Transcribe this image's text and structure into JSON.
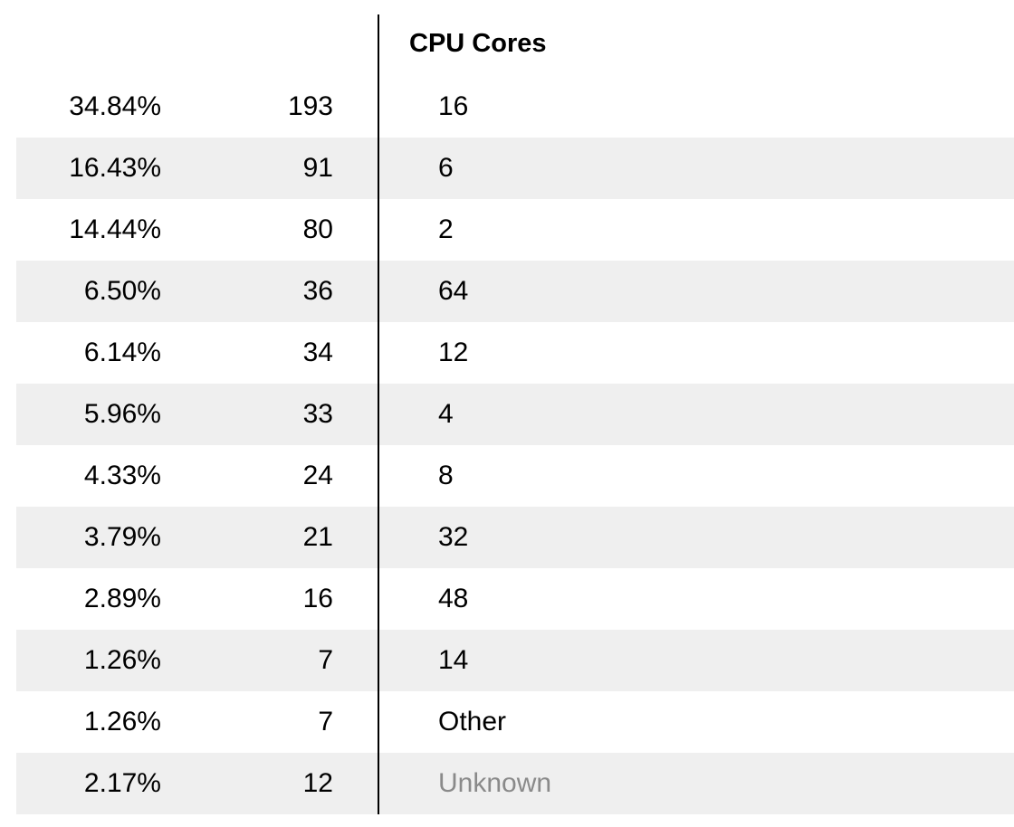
{
  "table": {
    "title": "CPU Cores",
    "rows": [
      {
        "percent": "34.84%",
        "count": "193",
        "label": "16"
      },
      {
        "percent": "16.43%",
        "count": "91",
        "label": "6"
      },
      {
        "percent": "14.44%",
        "count": "80",
        "label": "2"
      },
      {
        "percent": "6.50%",
        "count": "36",
        "label": "64"
      },
      {
        "percent": "6.14%",
        "count": "34",
        "label": "12"
      },
      {
        "percent": "5.96%",
        "count": "33",
        "label": "4"
      },
      {
        "percent": "4.33%",
        "count": "24",
        "label": "8"
      },
      {
        "percent": "3.79%",
        "count": "21",
        "label": "32"
      },
      {
        "percent": "2.89%",
        "count": "16",
        "label": "48"
      },
      {
        "percent": "1.26%",
        "count": "7",
        "label": "14"
      },
      {
        "percent": "1.26%",
        "count": "7",
        "label": "Other"
      },
      {
        "percent": "2.17%",
        "count": "12",
        "label": "Unknown"
      }
    ]
  },
  "colors": {
    "row_alt_background": "#efefef",
    "unknown_label": "#8a8a8a",
    "divider": "#000000"
  }
}
